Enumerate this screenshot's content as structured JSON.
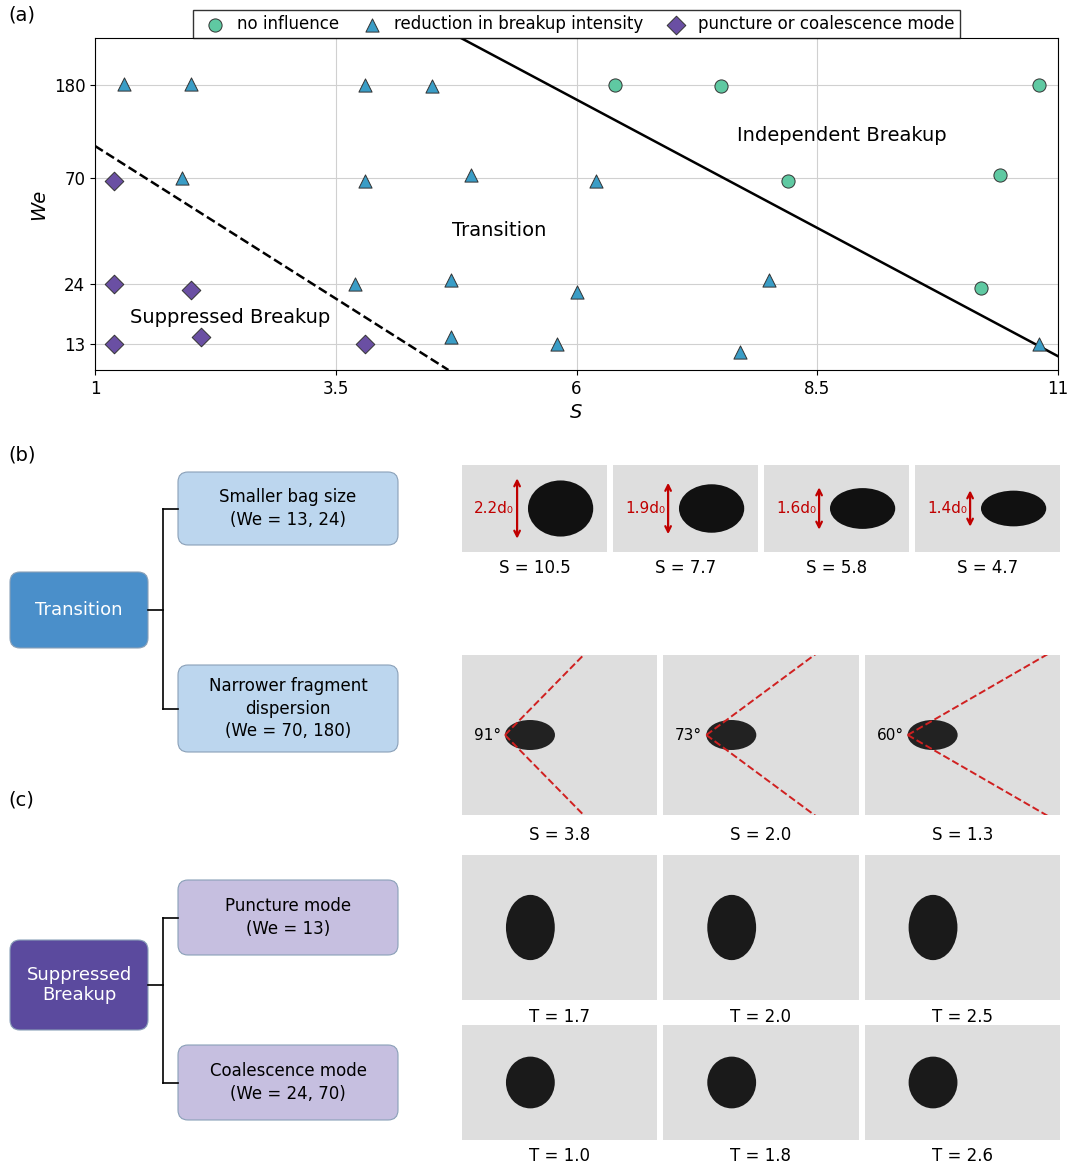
{
  "chart_data": {
    "type": "scatter",
    "panel_label": "(a)",
    "x_label": "S",
    "y_label": "We",
    "xlim": [
      1,
      11
    ],
    "xticks": [
      1,
      3.5,
      6,
      8.5,
      11
    ],
    "ylim": [
      10,
      290
    ],
    "yticks": [
      13,
      24,
      70,
      180
    ],
    "log": "y",
    "grid": true,
    "legend": "upper center",
    "series": [
      {
        "name": "no influence",
        "type": "scatter",
        "marker": "circle",
        "color": "#5fc9a2",
        "x": [
          6.4,
          7.5,
          10.8,
          8.2,
          10.4,
          10.2
        ],
        "values": [
          180,
          178,
          180,
          68,
          72,
          23
        ]
      },
      {
        "name": "reduction in breakup intensity",
        "type": "scatter",
        "marker": "triangle",
        "color": "#3a9dc6",
        "x": [
          1.3,
          2.0,
          3.8,
          4.5,
          1.9,
          3.8,
          4.9,
          6.2,
          3.7,
          4.7,
          6.0,
          8.0,
          4.7,
          5.8,
          7.7,
          10.8
        ],
        "values": [
          182,
          182,
          180,
          178,
          70,
          68,
          72,
          68,
          24,
          25,
          22,
          25,
          14,
          13,
          12,
          13
        ]
      },
      {
        "name": "puncture or coalescence mode",
        "type": "scatter",
        "marker": "diamond",
        "color": "#6a4fa3",
        "x": [
          1.2,
          1.2,
          2.0,
          1.2,
          2.1,
          3.8
        ],
        "values": [
          68,
          24,
          22.5,
          13,
          14,
          13
        ]
      },
      {
        "type": "line",
        "line_style": "solid",
        "color": "#000000",
        "x": [
          4.8,
          11
        ],
        "values": [
          290,
          11.5
        ]
      },
      {
        "type": "line",
        "line_style": "dashed",
        "color": "#000000",
        "x": [
          1,
          4.67
        ],
        "values": [
          97,
          10
        ]
      }
    ],
    "annotations": [
      {
        "text": "Independent Breakup",
        "x": 8.76,
        "y": 108
      },
      {
        "text": "Transition",
        "x": 5.2,
        "y": 41
      },
      {
        "text": "Suppressed Breakup",
        "x": 2.4,
        "y": 17
      }
    ]
  },
  "diagram": {
    "panels": [
      {
        "label": "(b)",
        "group": "Transition",
        "rows": [
          {
            "title": "Smaller bag size",
            "condition": "(We = 13, 24)",
            "images": [
              {
                "caption": "S = 10.5",
                "annotation": {
                  "value": 2.2,
                  "label": "2.2d₀"
                }
              },
              {
                "caption": "S = 7.7",
                "annotation": {
                  "value": 1.9,
                  "label": "1.9d₀"
                }
              },
              {
                "caption": "S = 5.8",
                "annotation": {
                  "value": 1.6,
                  "label": "1.6d₀"
                }
              },
              {
                "caption": "S = 4.7",
                "annotation": {
                  "value": 1.4,
                  "label": "1.4d₀"
                }
              }
            ]
          },
          {
            "title": "Narrower fragment\ndispersion",
            "condition": "(We = 70, 180)",
            "images": [
              {
                "caption": "S = 3.8",
                "annotation": {
                  "value": 91,
                  "label": "91°"
                }
              },
              {
                "caption": "S = 2.0",
                "annotation": {
                  "value": 73,
                  "label": "73°"
                }
              },
              {
                "caption": "S = 1.3",
                "annotation": {
                  "value": 60,
                  "label": "60°"
                }
              }
            ]
          }
        ]
      },
      {
        "label": "(c)",
        "group": "Suppressed\nBreakup",
        "rows": [
          {
            "title": "Puncture mode",
            "condition": "(We = 13)",
            "images": [
              {
                "caption": "T = 1.7"
              },
              {
                "caption": "T = 2.0"
              },
              {
                "caption": "T = 2.5"
              }
            ]
          },
          {
            "title": "Coalescence mode",
            "condition": "(We = 24, 70)",
            "images": [
              {
                "caption": "T = 1.0"
              },
              {
                "caption": "T = 1.8"
              },
              {
                "caption": "T = 2.6"
              }
            ]
          }
        ]
      }
    ]
  }
}
